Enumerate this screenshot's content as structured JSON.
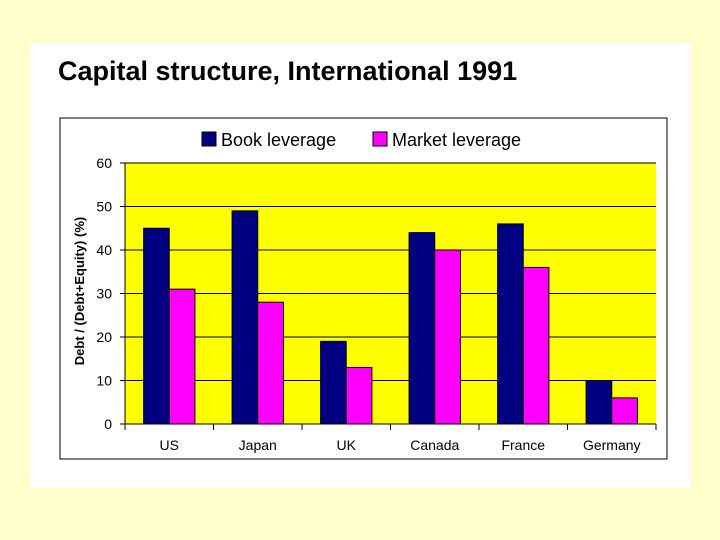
{
  "slide": {
    "title": "Capital structure, International 1991"
  },
  "chart_data": {
    "type": "bar",
    "title": "",
    "xlabel": "",
    "ylabel": "Debt / (Debt+Equity) (%)",
    "categories": [
      "US",
      "Japan",
      "UK",
      "Canada",
      "France",
      "Germany"
    ],
    "series": [
      {
        "name": "Book leverage",
        "values": [
          45,
          49,
          19,
          44,
          46,
          10
        ],
        "color": "#000080"
      },
      {
        "name": "Market leverage",
        "values": [
          31,
          28,
          13,
          40,
          36,
          6
        ],
        "color": "#FF00FF"
      }
    ],
    "ylim": [
      0,
      60
    ],
    "yticks": [
      0,
      10,
      20,
      30,
      40,
      50,
      60
    ],
    "ytick_labels": [
      "0",
      "10",
      "20",
      "30",
      "40",
      "50",
      "60"
    ],
    "grid": true,
    "legend_position": "top",
    "plot_background": "#FFFF00"
  }
}
